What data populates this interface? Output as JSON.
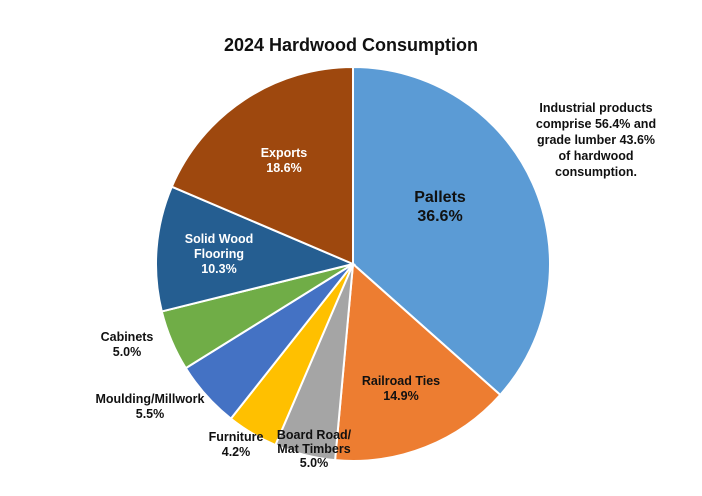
{
  "chart_data": {
    "type": "pie",
    "title": "2024 Hardwood Consumption",
    "unit": "%",
    "slices": [
      {
        "name": "Pallets",
        "value": 36.6,
        "label_lines": [
          "Pallets",
          "36.6%"
        ],
        "color": "#5B9BD5"
      },
      {
        "name": "Railroad Ties",
        "value": 14.9,
        "label_lines": [
          "Railroad Ties",
          "14.9%"
        ],
        "color": "#ED7D31"
      },
      {
        "name": "Board Road/ Mat Timbers",
        "value": 5.0,
        "label_lines": [
          "Board Road/",
          "Mat Timbers",
          "5.0%"
        ],
        "color": "#A5A5A5"
      },
      {
        "name": "Furniture",
        "value": 4.2,
        "label_lines": [
          "Furniture",
          "4.2%"
        ],
        "color": "#FFC000"
      },
      {
        "name": "Moulding/Millwork",
        "value": 5.5,
        "label_lines": [
          "Moulding/Millwork",
          "5.5%"
        ],
        "color": "#4472C4"
      },
      {
        "name": "Cabinets",
        "value": 5.0,
        "label_lines": [
          "Cabinets",
          "5.0%"
        ],
        "color": "#70AD47"
      },
      {
        "name": "Solid Wood Flooring",
        "value": 10.3,
        "label_lines": [
          "Solid Wood",
          "Flooring",
          "10.3%"
        ],
        "color": "#255E91"
      },
      {
        "name": "Exports",
        "value": 18.6,
        "label_lines": [
          "Exports",
          "18.6%"
        ],
        "color": "#9E480E"
      }
    ],
    "start_angle": "12 o'clock",
    "direction": "clockwise",
    "legend": "none"
  },
  "annotation": [
    "Industrial products",
    "comprise 56.4% and",
    "grade lumber 43.6%",
    "of hardwood",
    "consumption."
  ]
}
